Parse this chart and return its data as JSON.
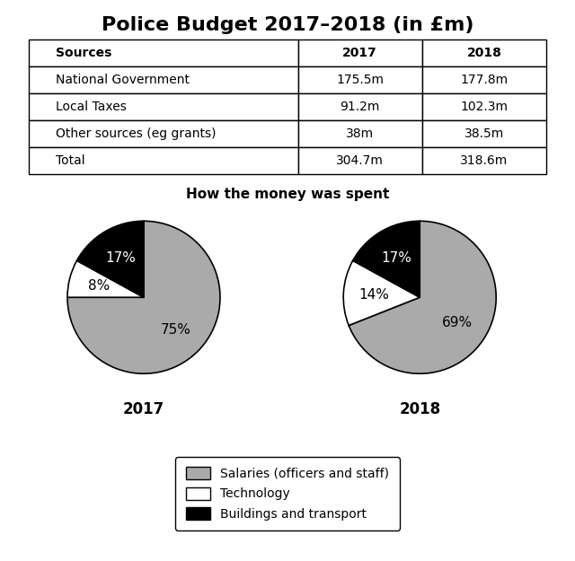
{
  "title": "Police Budget 2017–2018 (in £m)",
  "table": {
    "headers": [
      "Sources",
      "2017",
      "2018"
    ],
    "rows": [
      [
        "National Government",
        "175.5m",
        "177.8m"
      ],
      [
        "Local Taxes",
        "91.2m",
        "102.3m"
      ],
      [
        "Other sources (eg grants)",
        "38m",
        "38.5m"
      ],
      [
        "Total",
        "304.7m",
        "318.6m"
      ]
    ]
  },
  "chart_title": "How the money was spent",
  "pie_2017": {
    "label": "2017",
    "values": [
      75,
      8,
      17
    ],
    "labels": [
      "75%",
      "8%",
      "17%"
    ],
    "colors": [
      "#aaaaaa",
      "#ffffff",
      "#000000"
    ],
    "startangle": 90
  },
  "pie_2018": {
    "label": "2018",
    "values": [
      69,
      14,
      17
    ],
    "labels": [
      "69%",
      "14%",
      "17%"
    ],
    "colors": [
      "#aaaaaa",
      "#ffffff",
      "#000000"
    ],
    "startangle": 90
  },
  "legend_labels": [
    "Salaries (officers and staff)",
    "Technology",
    "Buildings and transport"
  ],
  "legend_colors": [
    "#aaaaaa",
    "#ffffff",
    "#000000"
  ],
  "background_color": "#ffffff",
  "text_color": "#000000",
  "title_fontsize": 16,
  "table_fontsize": 10,
  "chart_title_fontsize": 11,
  "pie_label_fontsize": 11,
  "pie_year_fontsize": 12,
  "legend_fontsize": 10
}
